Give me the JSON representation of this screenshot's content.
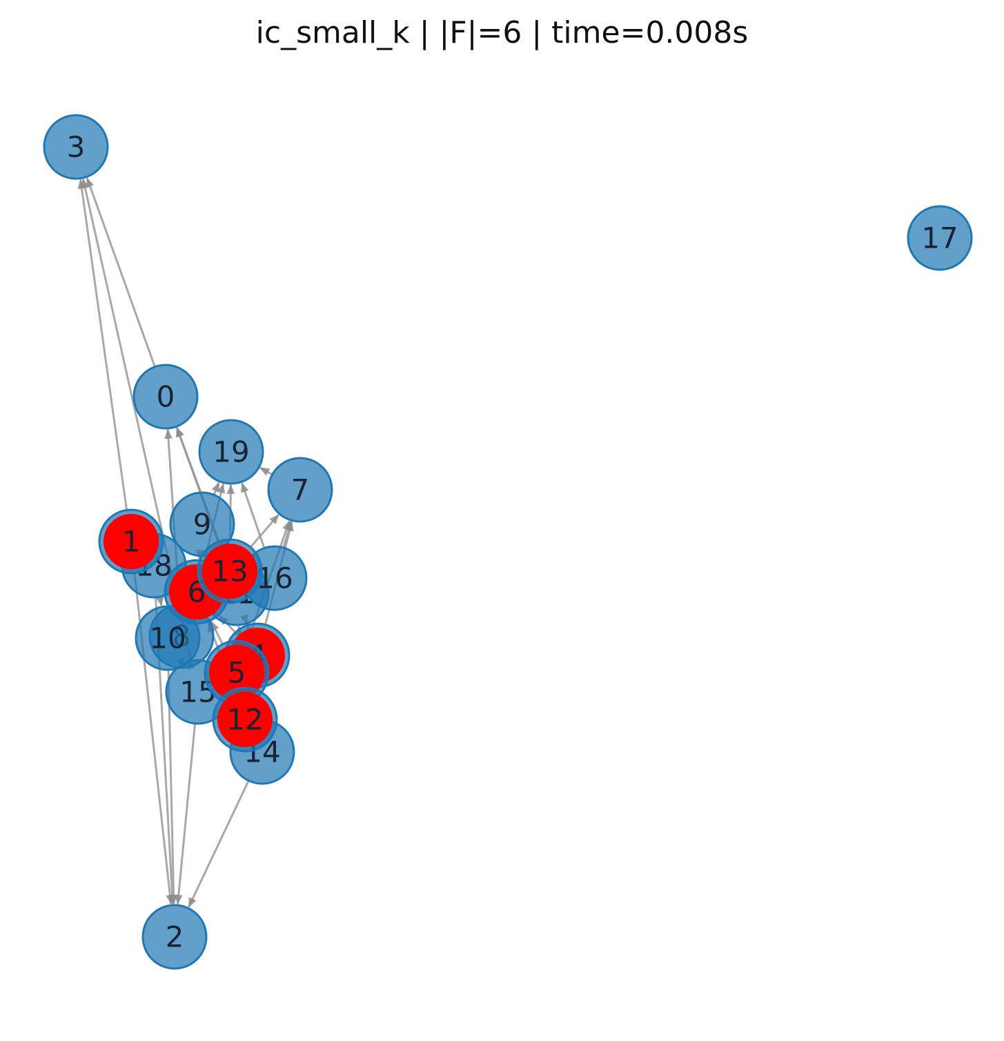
{
  "title": "ic_small_k | |F|=6 | time=0.008s",
  "colors": {
    "node": "#1f77b4",
    "seed": "#ff0000",
    "edge": "#999999"
  },
  "nodes": [
    {
      "id": "0"
    },
    {
      "id": "1",
      "seed": true
    },
    {
      "id": "2"
    },
    {
      "id": "3"
    },
    {
      "id": "4",
      "seed": true
    },
    {
      "id": "5",
      "seed": true
    },
    {
      "id": "6",
      "seed": true
    },
    {
      "id": "7"
    },
    {
      "id": "8"
    },
    {
      "id": "9"
    },
    {
      "id": "10"
    },
    {
      "id": "11"
    },
    {
      "id": "12",
      "seed": true
    },
    {
      "id": "13",
      "seed": true
    },
    {
      "id": "14"
    },
    {
      "id": "15"
    },
    {
      "id": "16"
    },
    {
      "id": "17"
    },
    {
      "id": "18"
    },
    {
      "id": "19"
    }
  ],
  "edges": [
    [
      "0",
      "3"
    ],
    [
      "1",
      "3"
    ],
    [
      "15",
      "3"
    ],
    [
      "1",
      "2"
    ],
    [
      "18",
      "2"
    ],
    [
      "15",
      "2"
    ],
    [
      "14",
      "2"
    ],
    [
      "10",
      "2"
    ],
    [
      "1",
      "18"
    ],
    [
      "6",
      "18"
    ],
    [
      "8",
      "0"
    ],
    [
      "11",
      "0"
    ],
    [
      "13",
      "0"
    ],
    [
      "9",
      "19"
    ],
    [
      "6",
      "19"
    ],
    [
      "16",
      "19"
    ],
    [
      "13",
      "19"
    ],
    [
      "7",
      "19"
    ],
    [
      "16",
      "7"
    ],
    [
      "13",
      "7"
    ],
    [
      "4",
      "7"
    ],
    [
      "5",
      "7"
    ],
    [
      "18",
      "10"
    ],
    [
      "15",
      "10"
    ],
    [
      "8",
      "15"
    ],
    [
      "5",
      "15"
    ],
    [
      "4",
      "6"
    ],
    [
      "5",
      "6"
    ],
    [
      "12",
      "6"
    ],
    [
      "14",
      "5"
    ],
    [
      "12",
      "5"
    ],
    [
      "9",
      "6"
    ],
    [
      "10",
      "6"
    ],
    [
      "11",
      "8"
    ],
    [
      "4",
      "11"
    ],
    [
      "12",
      "11"
    ],
    [
      "16",
      "11"
    ],
    [
      "12",
      "4"
    ],
    [
      "11",
      "4"
    ]
  ]
}
